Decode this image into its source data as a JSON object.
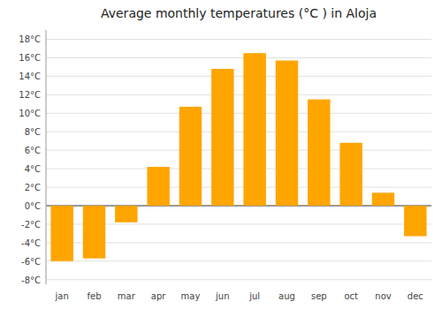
{
  "chart_data": {
    "type": "bar",
    "title": "Average monthly temperatures (°C ) in Aloja",
    "categories": [
      "jan",
      "feb",
      "mar",
      "apr",
      "may",
      "jun",
      "jul",
      "aug",
      "sep",
      "oct",
      "nov",
      "dec"
    ],
    "values": [
      -6.0,
      -5.7,
      -1.8,
      4.2,
      10.7,
      14.8,
      16.5,
      15.7,
      11.5,
      6.8,
      1.4,
      -3.3
    ],
    "color": "#FFA500",
    "ylim": [
      -8.5,
      19
    ],
    "yticks": [
      {
        "value": -8,
        "label": "-8°C"
      },
      {
        "value": -6,
        "label": "-6°C"
      },
      {
        "value": -4,
        "label": "-4°C"
      },
      {
        "value": -2,
        "label": "-2°C"
      },
      {
        "value": 0,
        "label": "0°C"
      },
      {
        "value": 2,
        "label": "2°C"
      },
      {
        "value": 4,
        "label": "4°C"
      },
      {
        "value": 6,
        "label": "6°C"
      },
      {
        "value": 8,
        "label": "8°C"
      },
      {
        "value": 10,
        "label": "10°C"
      },
      {
        "value": 12,
        "label": "12°C"
      },
      {
        "value": 14,
        "label": "14°C"
      },
      {
        "value": 16,
        "label": "16°C"
      },
      {
        "value": 18,
        "label": "18°C"
      }
    ],
    "grid": true
  }
}
